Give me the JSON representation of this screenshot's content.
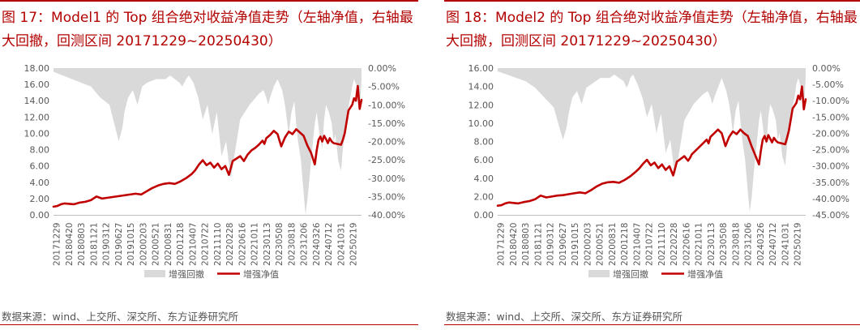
{
  "source_text": "数据来源：wind、上交所、深交所、东方证券研究所",
  "colors": {
    "accent": "#b30000",
    "nav_line": "#c00000",
    "drawdown_fill": "#d9d9d9"
  },
  "chart_data": [
    {
      "type": "area+line",
      "title": "图 17：Model1 的 Top 组合绝对收益净值走势（左轴净值，右轴最大回撤，回测区间 20171229~20250430）",
      "left_ticks": [
        "0.00",
        "2.00",
        "4.00",
        "6.00",
        "8.00",
        "10.00",
        "12.00",
        "14.00",
        "16.00",
        "18.00"
      ],
      "left_range": [
        0,
        18
      ],
      "right_ticks": [
        "0.00%",
        "-5.00%",
        "-10.00%",
        "-15.00%",
        "-20.00%",
        "-25.00%",
        "-30.00%",
        "-35.00%",
        "-40.00%"
      ],
      "right_range": [
        -40,
        0
      ],
      "x_ticks": [
        "20171229",
        "20180420",
        "20180803",
        "20181121",
        "20190312",
        "20190627",
        "20191015",
        "20200203",
        "20200521",
        "20200831",
        "20201218",
        "20210407",
        "20210722",
        "20211110",
        "20220228",
        "20220616",
        "20221011",
        "20230113",
        "20230508",
        "20230818",
        "20231206",
        "20240326",
        "20240712",
        "20241031",
        "20250219"
      ],
      "legend": [
        "增强回撤",
        "增强净值"
      ],
      "nav_series": {
        "name": "增强净值",
        "x": [
          0,
          4,
          8,
          12,
          17,
          22,
          28,
          34,
          40,
          46,
          52,
          58,
          64,
          70,
          76,
          82,
          88,
          94,
          100,
          106,
          112,
          118,
          124,
          130,
          136,
          142,
          148,
          152,
          156,
          160,
          164,
          168,
          172,
          176,
          180,
          184,
          188,
          192,
          196,
          200,
          204,
          206,
          208,
          212,
          216,
          220,
          224,
          226,
          228,
          232,
          236,
          240,
          244,
          248,
          252,
          256,
          260,
          264,
          268,
          272,
          276,
          280,
          282,
          284,
          286,
          288,
          290,
          292,
          294,
          296,
          298,
          300,
          304,
          308,
          310,
          312,
          316,
          320,
          322,
          324,
          326,
          328,
          330
        ],
        "y": [
          1.0,
          1.08,
          1.3,
          1.4,
          1.35,
          1.3,
          1.5,
          1.6,
          1.8,
          2.25,
          2.0,
          2.1,
          2.2,
          2.3,
          2.4,
          2.5,
          2.6,
          2.5,
          2.9,
          3.3,
          3.6,
          3.8,
          3.9,
          3.8,
          4.1,
          4.5,
          5.0,
          5.5,
          6.2,
          6.7,
          6.1,
          6.4,
          5.8,
          6.3,
          5.6,
          6.0,
          4.9,
          6.6,
          6.9,
          7.2,
          6.6,
          7.0,
          7.4,
          7.9,
          8.2,
          8.6,
          9.1,
          8.7,
          9.4,
          9.8,
          10.3,
          9.9,
          8.4,
          9.5,
          10.2,
          9.9,
          10.5,
          10.1,
          9.7,
          8.5,
          7.6,
          6.2,
          7.9,
          9.2,
          9.6,
          9.0,
          9.7,
          9.3,
          8.8,
          9.4,
          9.0,
          8.8,
          8.7,
          8.6,
          9.2,
          10.0,
          12.8,
          13.5,
          14.3,
          14.0,
          15.8,
          13.0,
          14.1
        ]
      },
      "drawdown_series": {
        "name": "增强回撤",
        "x": [
          0,
          10,
          20,
          30,
          40,
          50,
          60,
          65,
          70,
          72,
          74,
          76,
          80,
          85,
          90,
          95,
          100,
          110,
          120,
          125,
          130,
          135,
          138,
          140,
          142,
          145,
          150,
          155,
          160,
          165,
          170,
          175,
          180,
          185,
          190,
          195,
          200,
          210,
          220,
          225,
          228,
          230,
          232,
          236,
          240,
          245,
          248,
          250,
          252,
          255,
          258,
          260,
          262,
          265,
          268,
          270,
          272,
          275,
          278,
          280,
          282,
          285,
          288,
          290,
          292,
          295,
          298,
          300,
          302,
          305,
          308,
          310,
          312,
          315,
          318,
          320,
          322,
          325,
          328,
          330
        ],
        "y": [
          -1,
          -2,
          -3,
          -4,
          -5,
          -8,
          -10,
          -15,
          -20,
          -18,
          -16,
          -12,
          -8,
          -6,
          -10,
          -5,
          -4,
          -3,
          -3,
          -2,
          -3,
          -4,
          -5,
          -4,
          -3,
          -2,
          -4,
          -8,
          -14,
          -10,
          -18,
          -12,
          -24,
          -20,
          -30,
          -22,
          -14,
          -10,
          -7,
          -6,
          -8,
          -10,
          -8,
          -5,
          -3,
          -6,
          -10,
          -14,
          -18,
          -12,
          -9,
          -15,
          -20,
          -25,
          -34,
          -40,
          -36,
          -28,
          -20,
          -15,
          -12,
          -18,
          -22,
          -14,
          -10,
          -12,
          -15,
          -20,
          -18,
          -25,
          -28,
          -22,
          -18,
          -12,
          -8,
          -5,
          -3,
          -5,
          -12,
          -3
        ]
      }
    },
    {
      "type": "area+line",
      "title": "图 18：Model2 的 Top 组合绝对收益净值走势（左轴净值，右轴最大回撤，回测区间 20171229~20250430）",
      "left_ticks": [
        "0.00",
        "2.00",
        "4.00",
        "6.00",
        "8.00",
        "10.00",
        "12.00",
        "14.00",
        "16.00"
      ],
      "left_range": [
        0,
        16
      ],
      "right_ticks": [
        "0.00%",
        "-5.00%",
        "-10.00%",
        "-15.00%",
        "-20.00%",
        "-25.00%",
        "-30.00%",
        "-35.00%",
        "-40.00%",
        "-45.00%"
      ],
      "right_range": [
        -45,
        0
      ],
      "x_ticks": [
        "20171229",
        "20180420",
        "20180803",
        "20181121",
        "20190312",
        "20190627",
        "20191015",
        "20200203",
        "20200521",
        "20200831",
        "20201218",
        "20210407",
        "20210722",
        "20211110",
        "20220228",
        "20220616",
        "20221011",
        "20230113",
        "20230508",
        "20230818",
        "20231206",
        "20240326",
        "20240712",
        "20241031",
        "20250219"
      ],
      "legend": [
        "增强回撤",
        "增强净值"
      ],
      "nav_series": {
        "name": "增强净值",
        "x": [
          0,
          4,
          8,
          12,
          17,
          22,
          28,
          34,
          40,
          46,
          52,
          58,
          64,
          70,
          76,
          82,
          88,
          94,
          100,
          106,
          112,
          118,
          124,
          130,
          136,
          142,
          148,
          152,
          156,
          160,
          164,
          168,
          172,
          176,
          180,
          184,
          188,
          192,
          196,
          200,
          204,
          206,
          208,
          212,
          216,
          220,
          224,
          226,
          228,
          232,
          236,
          240,
          244,
          248,
          252,
          256,
          260,
          264,
          268,
          272,
          276,
          280,
          282,
          284,
          286,
          288,
          290,
          292,
          294,
          296,
          298,
          300,
          304,
          308,
          310,
          312,
          316,
          320,
          322,
          324,
          326,
          328,
          330
        ],
        "y": [
          1.0,
          1.05,
          1.25,
          1.35,
          1.3,
          1.25,
          1.4,
          1.5,
          1.7,
          2.1,
          1.9,
          2.0,
          2.1,
          2.15,
          2.25,
          2.35,
          2.45,
          2.35,
          2.7,
          3.1,
          3.4,
          3.55,
          3.6,
          3.5,
          3.8,
          4.2,
          4.7,
          5.1,
          5.6,
          6.0,
          5.4,
          5.7,
          5.1,
          5.5,
          4.9,
          5.3,
          4.3,
          5.8,
          6.1,
          6.4,
          5.9,
          6.2,
          6.6,
          7.0,
          7.4,
          7.8,
          8.2,
          7.8,
          8.5,
          8.9,
          9.3,
          8.9,
          7.5,
          8.5,
          9.1,
          8.8,
          9.3,
          8.9,
          8.6,
          7.5,
          6.5,
          5.5,
          7.0,
          8.2,
          8.6,
          8.0,
          8.7,
          8.3,
          7.9,
          8.4,
          8.1,
          7.9,
          7.8,
          7.7,
          8.4,
          9.2,
          11.6,
          12.2,
          13.0,
          12.6,
          14.0,
          11.5,
          12.6
        ]
      },
      "drawdown_series": {
        "name": "增强回撤",
        "x": [
          0,
          10,
          20,
          30,
          40,
          50,
          60,
          65,
          70,
          72,
          74,
          76,
          80,
          85,
          90,
          95,
          100,
          110,
          120,
          125,
          130,
          135,
          138,
          140,
          142,
          145,
          150,
          155,
          160,
          165,
          170,
          175,
          180,
          185,
          190,
          195,
          200,
          210,
          220,
          225,
          228,
          230,
          232,
          236,
          240,
          245,
          248,
          250,
          252,
          255,
          258,
          260,
          262,
          265,
          268,
          270,
          272,
          275,
          278,
          280,
          282,
          285,
          288,
          290,
          292,
          295,
          298,
          300,
          302,
          305,
          308,
          310,
          312,
          315,
          318,
          320,
          322,
          325,
          328,
          330
        ],
        "y": [
          -1,
          -2,
          -3,
          -4,
          -6,
          -9,
          -12,
          -17,
          -22,
          -20,
          -18,
          -14,
          -9,
          -7,
          -11,
          -6,
          -5,
          -3,
          -3,
          -2,
          -3,
          -4,
          -6,
          -5,
          -3,
          -2,
          -5,
          -9,
          -15,
          -11,
          -20,
          -14,
          -26,
          -22,
          -33,
          -25,
          -16,
          -11,
          -8,
          -7,
          -9,
          -11,
          -9,
          -6,
          -3,
          -7,
          -11,
          -15,
          -20,
          -13,
          -10,
          -16,
          -22,
          -28,
          -38,
          -44,
          -40,
          -30,
          -22,
          -16,
          -13,
          -20,
          -24,
          -15,
          -11,
          -13,
          -16,
          -22,
          -20,
          -27,
          -30,
          -24,
          -20,
          -13,
          -9,
          -5,
          -3,
          -6,
          -13,
          -3
        ]
      }
    }
  ]
}
